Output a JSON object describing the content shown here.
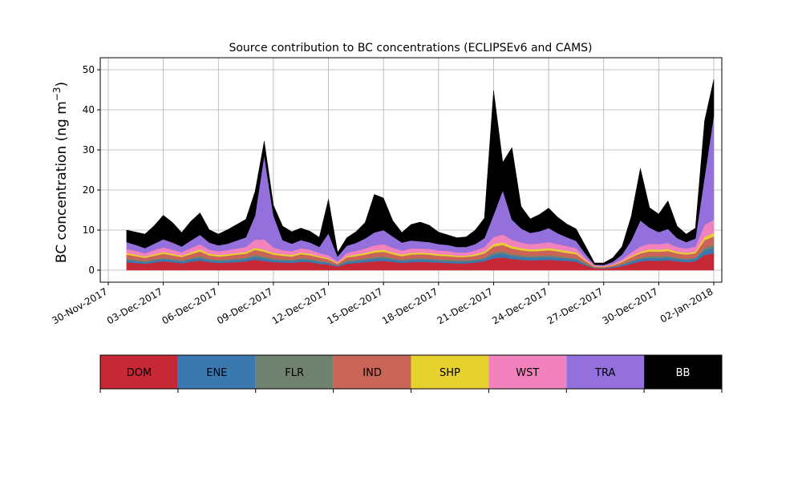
{
  "chart_data": {
    "type": "area",
    "stacked": true,
    "title": "Source contribution to BC concentrations (ECLIPSEv6 and CAMS)",
    "xlabel": "",
    "ylabel_text": "BC concentration (ng m",
    "ylabel_sup": "−3",
    "ylabel_close": ")",
    "xlim": [
      "2017-11-30",
      "2018-01-02"
    ],
    "ylim": [
      -3,
      53
    ],
    "grid": true,
    "x_ticks": [
      {
        "date": "2017-11-30",
        "label": "30-Nov-2017"
      },
      {
        "date": "2017-12-03",
        "label": "03-Dec-2017"
      },
      {
        "date": "2017-12-06",
        "label": "06-Dec-2017"
      },
      {
        "date": "2017-12-09",
        "label": "09-Dec-2017"
      },
      {
        "date": "2017-12-12",
        "label": "12-Dec-2017"
      },
      {
        "date": "2017-12-15",
        "label": "15-Dec-2017"
      },
      {
        "date": "2017-12-18",
        "label": "18-Dec-2017"
      },
      {
        "date": "2017-12-21",
        "label": "21-Dec-2017"
      },
      {
        "date": "2017-12-24",
        "label": "24-Dec-2017"
      },
      {
        "date": "2017-12-27",
        "label": "27-Dec-2017"
      },
      {
        "date": "2017-12-30",
        "label": "30-Dec-2017"
      },
      {
        "date": "2018-01-02",
        "label": "02-Jan-2018"
      }
    ],
    "y_ticks": [
      0,
      10,
      20,
      30,
      40,
      50
    ],
    "legend_placement": "below-chart",
    "x": [
      "2017-12-01",
      "2017-12-01T12",
      "2017-12-02",
      "2017-12-02T12",
      "2017-12-03",
      "2017-12-03T12",
      "2017-12-04",
      "2017-12-04T12",
      "2017-12-05",
      "2017-12-05T12",
      "2017-12-06",
      "2017-12-06T12",
      "2017-12-07",
      "2017-12-07T12",
      "2017-12-08",
      "2017-12-08T12",
      "2017-12-09",
      "2017-12-09T12",
      "2017-12-10",
      "2017-12-10T12",
      "2017-12-11",
      "2017-12-11T12",
      "2017-12-12",
      "2017-12-12T12",
      "2017-12-13",
      "2017-12-13T12",
      "2017-12-14",
      "2017-12-14T12",
      "2017-12-15",
      "2017-12-15T12",
      "2017-12-16",
      "2017-12-16T12",
      "2017-12-17",
      "2017-12-17T12",
      "2017-12-18",
      "2017-12-18T12",
      "2017-12-19",
      "2017-12-19T12",
      "2017-12-20",
      "2017-12-20T12",
      "2017-12-21",
      "2017-12-21T12",
      "2017-12-22",
      "2017-12-22T12",
      "2017-12-23",
      "2017-12-23T12",
      "2017-12-24",
      "2017-12-24T12",
      "2017-12-25",
      "2017-12-25T12",
      "2017-12-26",
      "2017-12-26T12",
      "2017-12-27",
      "2017-12-27T12",
      "2017-12-28",
      "2017-12-28T12",
      "2017-12-29",
      "2017-12-29T12",
      "2017-12-30",
      "2017-12-30T12",
      "2017-12-31",
      "2017-12-31T12",
      "2018-01-01",
      "2018-01-01T12",
      "2018-01-02"
    ],
    "series": [
      {
        "name": "DOM",
        "color": "#c62835",
        "values": [
          2.0,
          1.8,
          1.6,
          1.9,
          2.2,
          2.0,
          1.7,
          2.1,
          2.4,
          2.0,
          1.8,
          1.9,
          2.0,
          2.2,
          2.6,
          2.3,
          2.0,
          1.9,
          1.8,
          2.1,
          2.0,
          1.6,
          1.4,
          0.9,
          1.6,
          1.8,
          2.0,
          2.2,
          2.3,
          2.1,
          1.8,
          2.0,
          2.1,
          2.0,
          1.9,
          1.8,
          1.7,
          1.7,
          1.9,
          2.2,
          3.0,
          3.2,
          2.8,
          2.6,
          2.4,
          2.5,
          2.6,
          2.4,
          2.3,
          2.1,
          1.2,
          0.5,
          0.4,
          0.6,
          1.0,
          1.6,
          2.2,
          2.4,
          2.3,
          2.5,
          2.2,
          2.0,
          2.2,
          3.8,
          4.2
        ]
      },
      {
        "name": "ENE",
        "color": "#3b78b0",
        "values": [
          0.6,
          0.5,
          0.4,
          0.5,
          0.6,
          0.5,
          0.5,
          0.6,
          0.7,
          0.5,
          0.5,
          0.5,
          0.6,
          0.6,
          0.8,
          0.7,
          0.6,
          0.5,
          0.5,
          0.6,
          0.5,
          0.5,
          0.4,
          0.2,
          0.5,
          0.5,
          0.6,
          0.7,
          0.7,
          0.6,
          0.5,
          0.6,
          0.6,
          0.6,
          0.5,
          0.5,
          0.5,
          0.5,
          0.5,
          0.6,
          0.9,
          1.0,
          0.8,
          0.7,
          0.7,
          0.7,
          0.7,
          0.7,
          0.6,
          0.6,
          0.3,
          0.1,
          0.1,
          0.2,
          0.3,
          0.5,
          0.6,
          0.7,
          0.7,
          0.7,
          0.6,
          0.6,
          0.6,
          1.2,
          1.4
        ]
      },
      {
        "name": "FLR",
        "color": "#6f8270",
        "values": [
          0.3,
          0.3,
          0.3,
          0.3,
          0.3,
          0.3,
          0.3,
          0.3,
          0.4,
          0.3,
          0.3,
          0.3,
          0.3,
          0.3,
          0.4,
          0.4,
          0.3,
          0.3,
          0.3,
          0.3,
          0.3,
          0.3,
          0.2,
          0.1,
          0.3,
          0.3,
          0.3,
          0.4,
          0.4,
          0.3,
          0.3,
          0.3,
          0.3,
          0.3,
          0.3,
          0.3,
          0.3,
          0.3,
          0.3,
          0.3,
          0.5,
          0.5,
          0.4,
          0.4,
          0.4,
          0.4,
          0.4,
          0.4,
          0.3,
          0.3,
          0.2,
          0.1,
          0.1,
          0.1,
          0.2,
          0.3,
          0.3,
          0.4,
          0.4,
          0.4,
          0.3,
          0.3,
          0.3,
          0.6,
          0.7
        ]
      },
      {
        "name": "IND",
        "color": "#c96558",
        "values": [
          1.0,
          0.9,
          0.8,
          0.9,
          1.0,
          0.9,
          0.8,
          1.0,
          1.2,
          0.9,
          0.8,
          0.9,
          1.0,
          1.0,
          1.3,
          1.2,
          1.0,
          0.9,
          0.8,
          1.0,
          0.9,
          0.8,
          0.7,
          0.4,
          0.8,
          0.9,
          1.0,
          1.1,
          1.2,
          1.0,
          0.9,
          1.0,
          1.0,
          1.0,
          0.9,
          0.9,
          0.8,
          0.8,
          0.9,
          1.1,
          1.5,
          1.6,
          1.4,
          1.3,
          1.2,
          1.2,
          1.3,
          1.2,
          1.1,
          1.0,
          0.6,
          0.2,
          0.2,
          0.3,
          0.5,
          0.8,
          1.1,
          1.2,
          1.2,
          1.2,
          1.1,
          1.0,
          1.1,
          1.9,
          2.1
        ]
      },
      {
        "name": "SHP",
        "color": "#e6d22e",
        "values": [
          0.4,
          0.4,
          0.3,
          0.4,
          0.4,
          0.4,
          0.3,
          0.4,
          0.5,
          0.4,
          0.4,
          0.4,
          0.4,
          0.4,
          0.5,
          0.5,
          0.4,
          0.4,
          0.4,
          0.4,
          0.4,
          0.3,
          0.3,
          0.2,
          0.3,
          0.4,
          0.4,
          0.5,
          0.5,
          0.4,
          0.4,
          0.4,
          0.4,
          0.4,
          0.4,
          0.4,
          0.3,
          0.3,
          0.4,
          0.4,
          0.6,
          0.6,
          0.6,
          0.5,
          0.5,
          0.5,
          0.5,
          0.5,
          0.5,
          0.4,
          0.2,
          0.1,
          0.1,
          0.1,
          0.2,
          0.3,
          0.4,
          0.5,
          0.5,
          0.5,
          0.4,
          0.4,
          0.4,
          0.8,
          0.9
        ]
      },
      {
        "name": "WST",
        "color": "#f282bd",
        "values": [
          1.0,
          0.9,
          0.8,
          1.0,
          1.2,
          1.0,
          0.9,
          1.1,
          1.3,
          1.0,
          0.9,
          1.0,
          1.1,
          1.3,
          2.0,
          2.6,
          1.4,
          1.0,
          0.9,
          1.1,
          1.0,
          0.8,
          0.7,
          0.4,
          0.8,
          0.9,
          1.1,
          1.3,
          1.4,
          1.2,
          1.0,
          1.1,
          1.0,
          1.0,
          0.9,
          0.9,
          0.8,
          0.8,
          0.9,
          1.2,
          1.8,
          2.0,
          1.6,
          1.4,
          1.3,
          1.4,
          1.5,
          1.3,
          1.2,
          1.1,
          0.6,
          0.2,
          0.2,
          0.3,
          0.5,
          0.9,
          1.3,
          1.4,
          1.4,
          1.5,
          1.2,
          1.1,
          1.3,
          3.0,
          3.3
        ]
      },
      {
        "name": "TRA",
        "color": "#9370db",
        "values": [
          1.7,
          1.5,
          1.3,
          1.6,
          2.0,
          1.8,
          1.4,
          1.9,
          2.3,
          1.8,
          1.5,
          1.6,
          2.0,
          2.4,
          6.0,
          21.0,
          8.0,
          2.5,
          1.9,
          2.0,
          1.8,
          1.5,
          5.5,
          1.2,
          1.8,
          2.0,
          2.5,
          3.2,
          3.5,
          2.8,
          2.0,
          2.0,
          1.8,
          1.7,
          1.6,
          1.5,
          1.4,
          1.4,
          1.6,
          2.2,
          5.5,
          11.0,
          5.0,
          3.5,
          2.8,
          3.0,
          3.5,
          2.7,
          2.2,
          1.8,
          1.0,
          0.2,
          0.2,
          0.5,
          1.2,
          3.0,
          6.5,
          4.0,
          3.0,
          3.5,
          2.2,
          1.6,
          2.0,
          12.0,
          26.0
        ]
      },
      {
        "name": "BB",
        "color": "#000000",
        "values": [
          3.0,
          3.2,
          3.5,
          4.5,
          6.0,
          5.0,
          3.5,
          4.8,
          5.5,
          3.2,
          2.8,
          3.5,
          4.0,
          4.5,
          6.0,
          3.5,
          2.5,
          3.5,
          3.0,
          3.0,
          2.8,
          2.4,
          8.5,
          1.0,
          2.0,
          2.8,
          4.0,
          9.5,
          8.0,
          4.0,
          2.5,
          4.0,
          4.8,
          4.2,
          3.0,
          2.5,
          2.3,
          2.5,
          3.5,
          5.0,
          31.0,
          7.0,
          18.0,
          5.5,
          3.5,
          4.2,
          5.0,
          4.0,
          3.3,
          3.0,
          2.0,
          0.4,
          0.5,
          1.0,
          2.0,
          6.0,
          13.0,
          5.0,
          4.5,
          7.0,
          3.0,
          2.0,
          2.6,
          14.0,
          9.0
        ]
      }
    ]
  }
}
